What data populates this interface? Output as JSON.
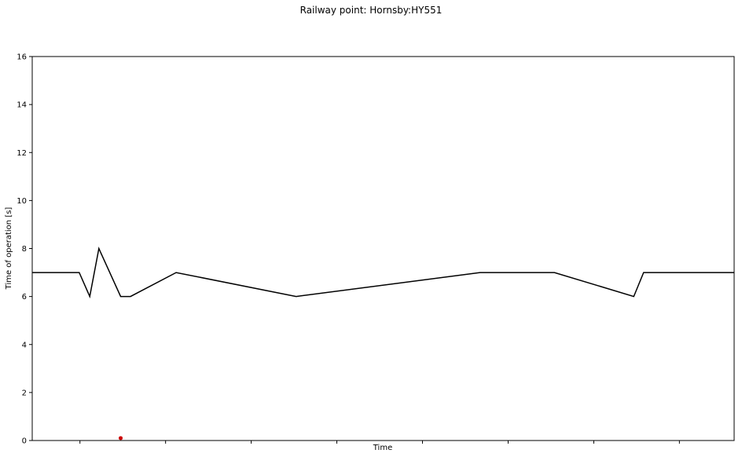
{
  "chart_data": {
    "type": "line",
    "title": "Railway point: Hornsby:HY551",
    "xlabel": "Time",
    "ylabel": "Time of operation [s]",
    "ylim": [
      0,
      16
    ],
    "yticks": [
      0,
      2,
      4,
      6,
      8,
      10,
      12,
      14,
      16
    ],
    "xlim": [
      0,
      100
    ],
    "xticks": [
      6.8,
      19.0,
      31.2,
      43.4,
      55.6,
      67.8,
      80.0,
      92.2
    ],
    "grid": false,
    "series": [
      {
        "color": "#000000",
        "x": [
          0,
          6.7,
          8.2,
          9.5,
          12.6,
          14.0,
          20.5,
          37.6,
          63.8,
          74.4,
          85.7,
          87.1,
          100
        ],
        "y": [
          7,
          7,
          6,
          8,
          6,
          6,
          7,
          6,
          7,
          7,
          6,
          7,
          7
        ]
      }
    ],
    "markers": [
      {
        "color": "#cc0000",
        "x": 12.6,
        "y": 0.1
      }
    ]
  }
}
